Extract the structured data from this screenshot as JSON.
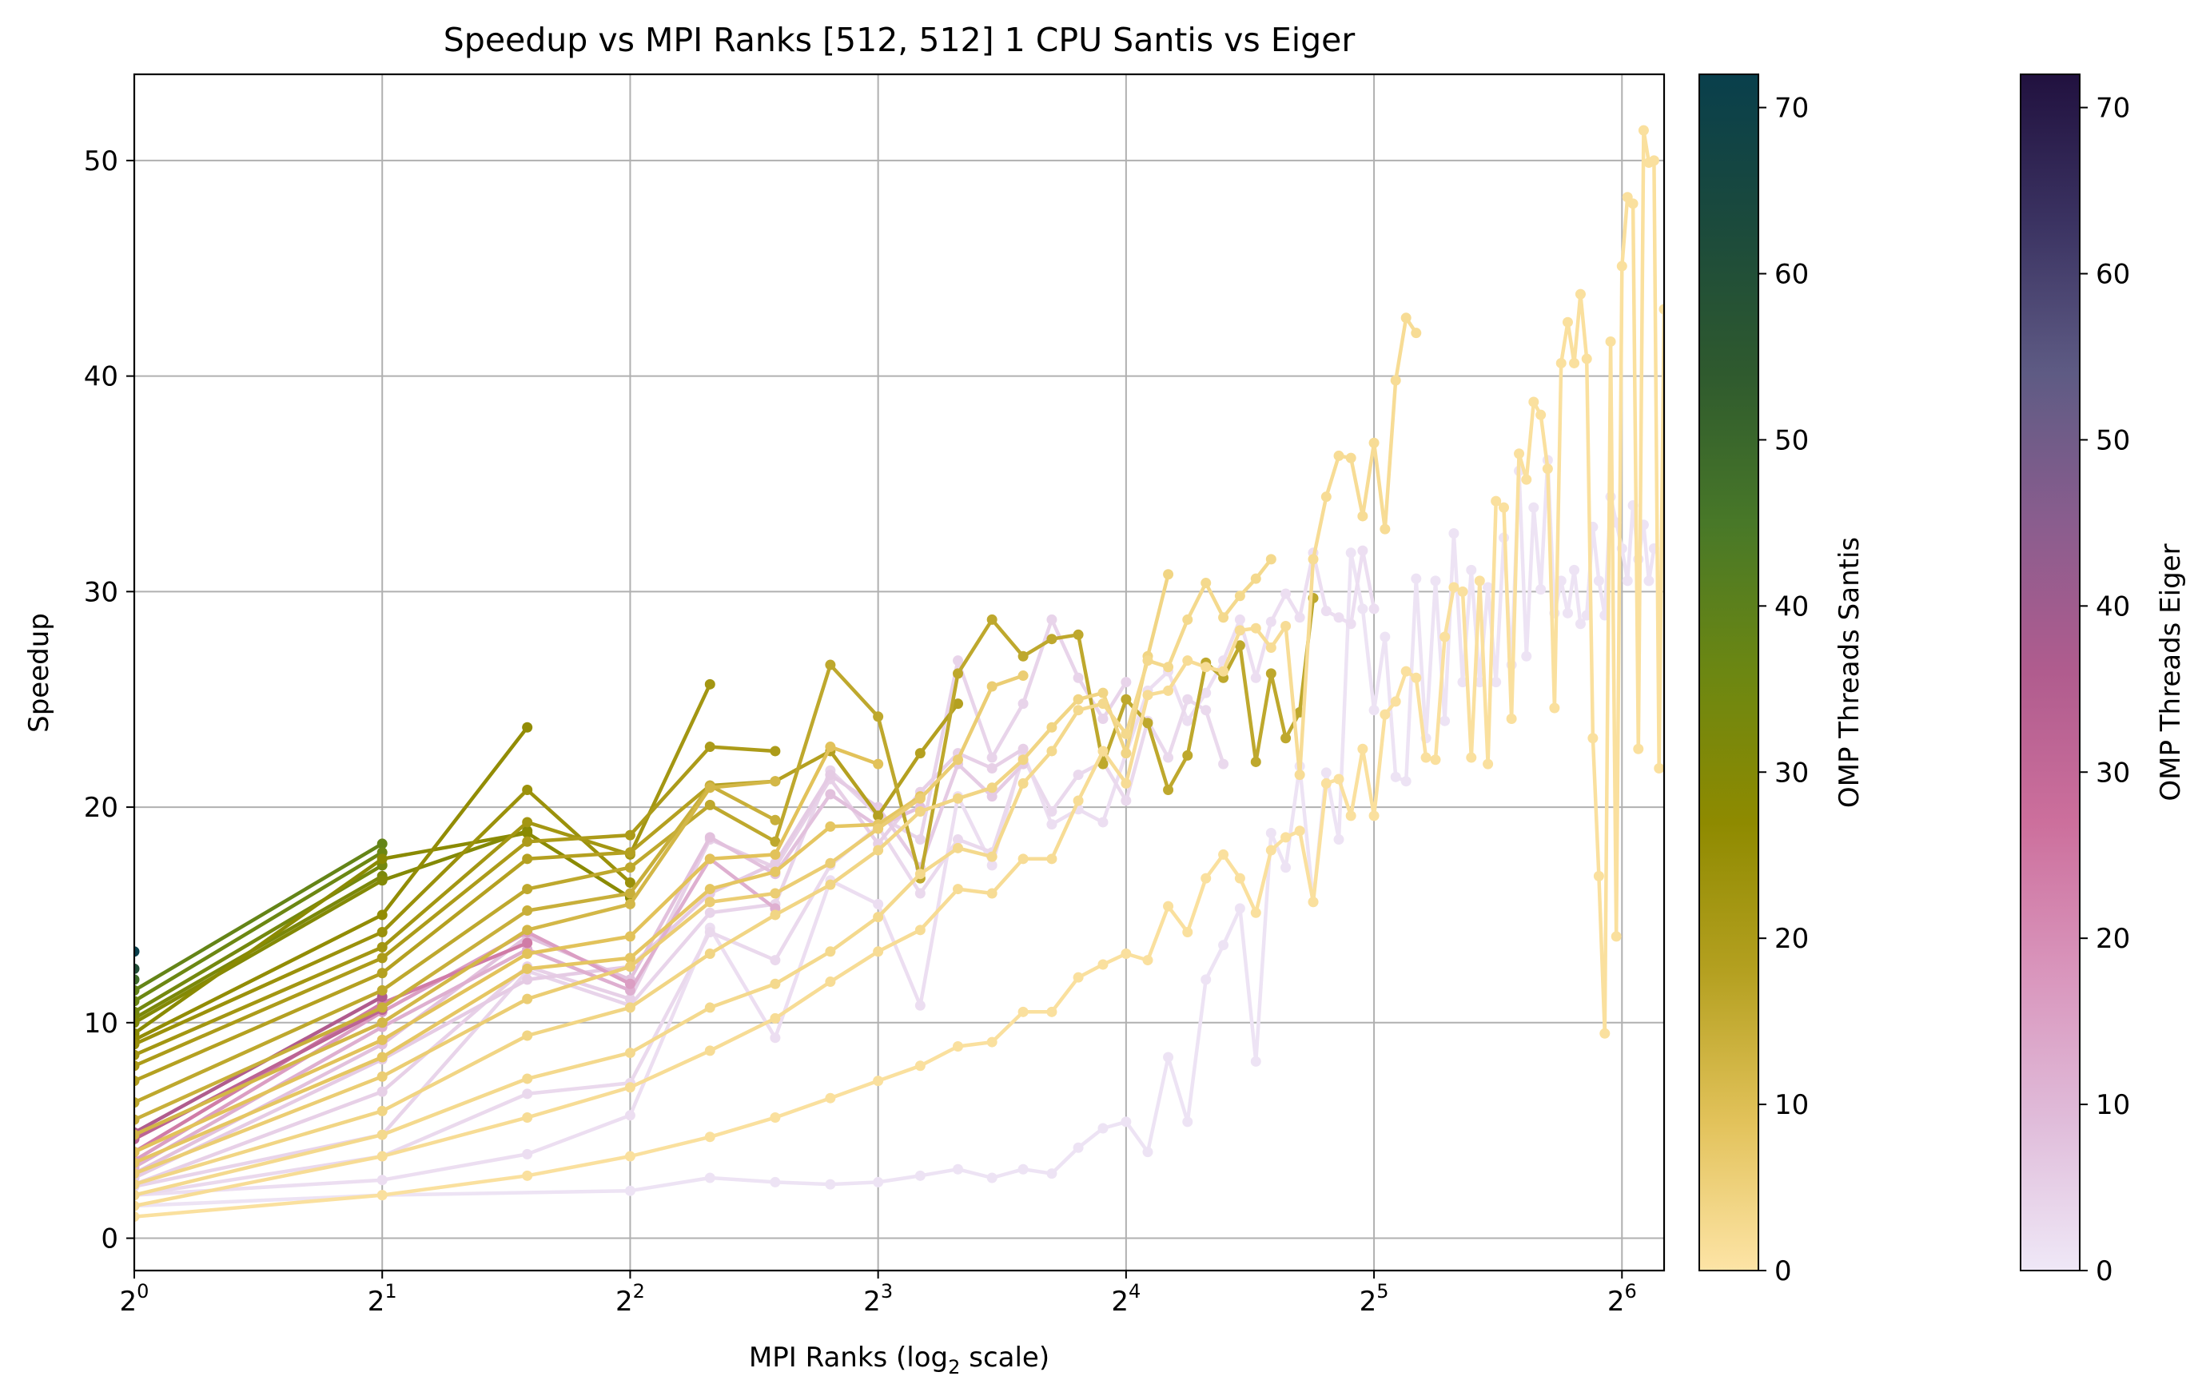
{
  "chart_data": {
    "type": "line",
    "title": "Speedup vs MPI Ranks [512, 512] 1 CPU Santis vs Eiger",
    "xlabel": "MPI Ranks (log₂ scale)",
    "xlabel_parts": {
      "prefix": "MPI Ranks (log",
      "sub": "2",
      "suffix": " scale)"
    },
    "ylabel": "Speedup",
    "x_scale": "log2",
    "xlim": [
      1,
      72
    ],
    "ylim": [
      -1.5,
      54
    ],
    "grid": true,
    "x_ticks": [
      {
        "value": 1,
        "base": "2",
        "exp": "0"
      },
      {
        "value": 2,
        "base": "2",
        "exp": "1"
      },
      {
        "value": 4,
        "base": "2",
        "exp": "2"
      },
      {
        "value": 8,
        "base": "2",
        "exp": "3"
      },
      {
        "value": 16,
        "base": "2",
        "exp": "4"
      },
      {
        "value": 32,
        "base": "2",
        "exp": "5"
      },
      {
        "value": 64,
        "base": "2",
        "exp": "6"
      }
    ],
    "y_ticks": [
      0,
      10,
      20,
      30,
      40,
      50
    ],
    "colorbars": [
      {
        "label": "OMP Threads Santis",
        "min": 0,
        "max": 72,
        "ticks": [
          0,
          10,
          20,
          30,
          40,
          50,
          60,
          70
        ],
        "stops": [
          "#fde4a6",
          "#e2c25a",
          "#b4a020",
          "#8e8a00",
          "#6c8712",
          "#487828",
          "#2f5a2e",
          "#1b4a3c",
          "#093f4c"
        ]
      },
      {
        "label": "OMP Threads Eiger",
        "min": 0,
        "max": 72,
        "ticks": [
          0,
          10,
          20,
          30,
          40,
          50,
          60,
          70
        ],
        "stops": [
          "#efe8f7",
          "#e0bcda",
          "#d995bc",
          "#cc6f9c",
          "#b05c8e",
          "#8a5d8e",
          "#5e5b84",
          "#3b3362",
          "#21113f"
        ]
      }
    ],
    "series": [
      {
        "system": "Eiger",
        "threads": 1,
        "x": [
          1,
          2,
          4,
          5,
          6,
          7,
          8,
          9,
          10,
          11,
          12,
          13,
          14,
          15,
          16,
          17,
          18,
          19,
          20,
          21,
          22,
          23,
          24,
          25,
          26,
          27,
          28,
          29,
          30,
          31,
          32,
          33,
          34,
          35,
          36,
          37,
          38,
          39,
          40,
          41,
          42,
          43,
          44,
          45,
          46,
          47,
          48,
          49,
          50,
          51,
          52,
          53,
          54,
          55,
          56,
          57,
          58,
          59,
          60,
          61,
          62,
          63,
          64,
          65,
          66,
          67,
          68,
          69,
          70
        ],
        "y": [
          1.5,
          2.0,
          2.2,
          2.8,
          2.6,
          2.5,
          2.6,
          2.9,
          3.2,
          2.8,
          3.2,
          3.0,
          4.2,
          5.1,
          5.4,
          4.0,
          8.4,
          5.4,
          12.0,
          13.6,
          15.3,
          8.2,
          18.8,
          17.2,
          21.9,
          15.6,
          21.6,
          18.5,
          31.8,
          29.2,
          24.5,
          27.9,
          21.4,
          21.2,
          30.6,
          23.2,
          30.5,
          24.0,
          32.7,
          25.8,
          31.0,
          25.8,
          30.2,
          25.8,
          32.5,
          26.6,
          35.6,
          27.0,
          33.9,
          30.1,
          36.1,
          29.0,
          30.5,
          29.0,
          31.0,
          28.5,
          28.9,
          33.0,
          30.5,
          28.9,
          34.4,
          33.2,
          32.0,
          30.5,
          34.0,
          31.5,
          33.1,
          30.5,
          32.0
        ]
      },
      {
        "system": "Eiger",
        "threads": 2,
        "x": [
          1,
          2,
          3,
          4,
          5,
          6,
          7,
          8,
          9,
          10,
          11,
          12,
          13,
          14,
          15,
          16,
          17,
          18,
          19,
          20,
          21,
          22,
          23,
          24,
          25,
          26,
          27,
          28,
          29,
          30,
          31,
          32
        ],
        "y": [
          2.0,
          2.7,
          3.9,
          5.7,
          14.4,
          9.3,
          16.6,
          15.5,
          10.8,
          20.5,
          17.3,
          22.5,
          19.2,
          19.9,
          19.3,
          22.5,
          25.4,
          26.3,
          24.0,
          25.3,
          26.8,
          28.7,
          26.0,
          28.6,
          29.9,
          28.8,
          31.8,
          29.1,
          28.8,
          28.5,
          31.9,
          29.2
        ]
      },
      {
        "system": "Eiger",
        "threads": 3,
        "x": [
          1,
          2,
          3,
          4,
          5,
          6,
          7,
          8,
          9,
          10,
          11,
          12,
          13,
          14,
          15,
          16,
          17,
          18,
          19,
          20,
          21
        ],
        "y": [
          2.0,
          3.8,
          6.7,
          7.2,
          14.2,
          12.9,
          17.3,
          19.1,
          16.0,
          18.5,
          17.9,
          22.3,
          19.8,
          21.5,
          22.1,
          20.3,
          24.0,
          22.3,
          25.0,
          24.5,
          22.0
        ]
      },
      {
        "system": "Eiger",
        "threads": 4,
        "x": [
          1,
          2,
          3,
          4,
          5,
          6,
          7,
          8,
          9,
          10,
          11,
          12,
          13,
          14,
          15,
          16
        ],
        "y": [
          2.4,
          4.8,
          12.4,
          10.8,
          15.1,
          15.5,
          21.7,
          19.6,
          18.5,
          26.8,
          22.3,
          24.8,
          28.7,
          26.0,
          24.1,
          25.8
        ]
      },
      {
        "system": "Eiger",
        "threads": 5,
        "x": [
          1,
          2,
          3,
          4,
          5,
          6,
          7,
          8,
          9,
          10,
          11,
          12
        ],
        "y": [
          2.5,
          6.8,
          12.6,
          11.1,
          18.5,
          17.2,
          21.3,
          18.3,
          20.7,
          22.5,
          21.8,
          22.7
        ]
      },
      {
        "system": "Eiger",
        "threads": 6,
        "x": [
          1,
          2,
          3,
          4,
          5,
          6,
          7,
          8,
          9,
          10,
          11,
          12
        ],
        "y": [
          2.8,
          8.3,
          12.0,
          12.6,
          16.0,
          17.4,
          21.5,
          20.0,
          17.2,
          22.0,
          20.5,
          22.0
        ]
      },
      {
        "system": "Eiger",
        "threads": 8,
        "x": [
          1,
          2,
          3,
          4,
          5,
          6,
          7,
          8,
          9
        ],
        "y": [
          3.0,
          9.0,
          14.0,
          12.0,
          18.6,
          16.9,
          20.6,
          19.1,
          20.0
        ]
      },
      {
        "system": "Eiger",
        "threads": 12,
        "x": [
          1,
          2,
          3,
          4,
          5,
          6
        ],
        "y": [
          3.3,
          9.8,
          13.4,
          11.5,
          17.6,
          15.3
        ]
      },
      {
        "system": "Eiger",
        "threads": 16,
        "x": [
          1,
          2,
          3,
          4
        ],
        "y": [
          3.6,
          10.5,
          14.2,
          11.8
        ]
      },
      {
        "system": "Eiger",
        "threads": 24,
        "x": [
          1,
          2,
          3
        ],
        "y": [
          4.0,
          10.9,
          13.7
        ]
      },
      {
        "system": "Eiger",
        "threads": 32,
        "x": [
          1,
          2
        ],
        "y": [
          4.6,
          10.6
        ]
      },
      {
        "system": "Eiger",
        "threads": 36,
        "x": [
          1,
          2
        ],
        "y": [
          4.9,
          11.2
        ]
      },
      {
        "system": "Santis",
        "threads": 1,
        "x": [
          1,
          2,
          3,
          4,
          5,
          6,
          7,
          8,
          9,
          10,
          11,
          12,
          13,
          14,
          15,
          16,
          17,
          18,
          19,
          20,
          21,
          22,
          23,
          24,
          25,
          26,
          27,
          28,
          29,
          30,
          31,
          32,
          33,
          34,
          35,
          36,
          37,
          38,
          39,
          40,
          41,
          42,
          43,
          44,
          45,
          46,
          47,
          48,
          49,
          50,
          51,
          52,
          53,
          54,
          55,
          56,
          57,
          58,
          59,
          60,
          61,
          62,
          63,
          64,
          65,
          66,
          67,
          68,
          69,
          70,
          71,
          72
        ],
        "y": [
          1.0,
          2.0,
          2.9,
          3.8,
          4.7,
          5.6,
          6.5,
          7.3,
          8.0,
          8.9,
          9.1,
          10.5,
          10.5,
          12.1,
          12.7,
          13.2,
          12.9,
          15.4,
          14.2,
          16.7,
          17.8,
          16.7,
          15.1,
          18.0,
          18.6,
          18.9,
          15.6,
          21.1,
          21.3,
          19.6,
          22.7,
          19.6,
          24.3,
          24.9,
          26.3,
          26.0,
          22.3,
          22.2,
          27.9,
          30.2,
          30.0,
          22.3,
          30.5,
          22.0,
          34.2,
          33.9,
          24.1,
          36.4,
          35.2,
          38.8,
          38.2,
          35.7,
          24.6,
          40.6,
          42.5,
          40.6,
          43.8,
          40.8,
          23.2,
          16.8,
          9.5,
          41.6,
          14.0,
          45.1,
          48.3,
          48.0,
          22.7,
          51.4,
          49.9,
          50.0,
          21.8,
          43.1
        ]
      },
      {
        "system": "Santis",
        "threads": 2,
        "x": [
          1,
          2,
          3,
          4,
          5,
          6,
          7,
          8,
          9,
          10,
          11,
          12,
          13,
          14,
          15,
          16,
          17,
          18,
          19,
          20,
          21,
          22,
          23,
          24,
          25,
          26,
          27,
          28,
          29,
          30,
          31,
          32,
          33,
          34,
          35,
          36
        ],
        "y": [
          1.5,
          3.8,
          5.6,
          7.0,
          8.7,
          10.2,
          11.9,
          13.3,
          14.3,
          16.2,
          16.0,
          17.6,
          17.6,
          20.3,
          22.6,
          21.1,
          25.2,
          25.4,
          26.8,
          26.5,
          26.3,
          28.2,
          28.3,
          27.4,
          28.4,
          21.5,
          31.5,
          34.4,
          36.3,
          36.2,
          33.5,
          36.9,
          32.9,
          39.8,
          42.7,
          42.0
        ]
      },
      {
        "system": "Santis",
        "threads": 3,
        "x": [
          1,
          2,
          3,
          4,
          5,
          6,
          7,
          8,
          9,
          10,
          11,
          12,
          13,
          14,
          15,
          16,
          17,
          18,
          19,
          20,
          21,
          22,
          23,
          24
        ],
        "y": [
          2.0,
          4.8,
          7.4,
          8.6,
          10.7,
          11.8,
          13.3,
          14.9,
          16.9,
          18.1,
          17.7,
          21.1,
          22.6,
          24.5,
          24.8,
          23.4,
          26.8,
          26.5,
          28.7,
          30.4,
          28.8,
          29.8,
          30.6,
          31.5
        ]
      },
      {
        "system": "Santis",
        "threads": 4,
        "x": [
          1,
          2,
          3,
          4,
          5,
          6,
          7,
          8,
          9,
          10,
          11,
          12,
          13,
          14,
          15,
          16,
          17,
          18
        ],
        "y": [
          2.5,
          5.9,
          9.4,
          10.7,
          13.2,
          15.0,
          16.4,
          18.0,
          19.8,
          20.4,
          20.9,
          22.2,
          23.7,
          25.0,
          25.3,
          22.5,
          27.0,
          30.8
        ]
      },
      {
        "system": "Santis",
        "threads": 6,
        "x": [
          1,
          2,
          3,
          4,
          5,
          6,
          7,
          8,
          9,
          10,
          11,
          12
        ],
        "y": [
          3.0,
          7.5,
          11.1,
          12.6,
          15.6,
          16.0,
          17.4,
          19.0,
          20.4,
          22.2,
          25.6,
          26.1
        ]
      },
      {
        "system": "Santis",
        "threads": 8,
        "x": [
          1,
          2,
          3,
          4,
          5,
          6,
          7,
          8,
          9
        ],
        "y": [
          3.5,
          8.4,
          12.5,
          13.0,
          16.2,
          17.0,
          19.1,
          19.2,
          20.5
        ]
      },
      {
        "system": "Santis",
        "threads": 9,
        "x": [
          1,
          2,
          3,
          4,
          5,
          6,
          7,
          8
        ],
        "y": [
          4.0,
          9.2,
          13.2,
          14.0,
          17.6,
          17.8,
          22.8,
          22.0
        ]
      },
      {
        "system": "Santis",
        "threads": 12,
        "x": [
          1,
          2,
          3,
          4,
          5,
          6
        ],
        "y": [
          4.8,
          10.0,
          14.3,
          15.5,
          20.9,
          21.2
        ]
      },
      {
        "system": "Santis",
        "threads": 14,
        "x": [
          1,
          2,
          3,
          4,
          5,
          6
        ],
        "y": [
          5.5,
          10.7,
          15.2,
          16.0,
          21.0,
          19.4
        ]
      },
      {
        "system": "Santis",
        "threads": 16,
        "x": [
          1,
          2,
          3,
          4,
          5,
          6,
          7,
          8,
          9,
          10,
          11,
          12,
          13,
          14,
          15,
          16,
          17,
          18,
          19,
          20,
          21,
          22,
          23,
          24,
          25,
          26,
          27
        ],
        "y": [
          6.3,
          11.5,
          16.2,
          17.2,
          20.1,
          18.4,
          26.6,
          24.2,
          16.7,
          26.2,
          28.7,
          27.0,
          27.8,
          28.0,
          22.0,
          25.0,
          23.9,
          20.8,
          22.4,
          26.7,
          26.0,
          27.5,
          22.1,
          26.2,
          23.2,
          24.4,
          29.7
        ]
      },
      {
        "system": "Santis",
        "threads": 18,
        "x": [
          1,
          2,
          3,
          4,
          5,
          6,
          7,
          8,
          9,
          10
        ],
        "y": [
          7.3,
          12.3,
          17.6,
          17.9,
          21.0,
          21.2,
          22.6,
          19.6,
          22.5,
          24.8
        ]
      },
      {
        "system": "Santis",
        "threads": 20,
        "x": [
          1,
          2,
          3,
          4,
          5,
          6
        ],
        "y": [
          8.0,
          13.0,
          18.4,
          18.7,
          22.8,
          22.6
        ]
      },
      {
        "system": "Santis",
        "threads": 22,
        "x": [
          1,
          2,
          3,
          4,
          5
        ],
        "y": [
          8.5,
          13.5,
          19.3,
          17.8,
          25.7
        ]
      },
      {
        "system": "Santis",
        "threads": 24,
        "x": [
          1,
          2,
          3,
          4
        ],
        "y": [
          9.0,
          14.2,
          20.8,
          16.5
        ]
      },
      {
        "system": "Santis",
        "threads": 26,
        "x": [
          1,
          2,
          3
        ],
        "y": [
          9.2,
          15.0,
          23.7
        ]
      },
      {
        "system": "Santis",
        "threads": 28,
        "x": [
          1,
          2,
          3,
          4
        ],
        "y": [
          9.5,
          17.6,
          18.8,
          15.8
        ]
      },
      {
        "system": "Santis",
        "threads": 30,
        "x": [
          1,
          2,
          3
        ],
        "y": [
          10.0,
          16.6,
          18.9
        ]
      },
      {
        "system": "Santis",
        "threads": 32,
        "x": [
          1,
          2
        ],
        "y": [
          10.2,
          16.8
        ]
      },
      {
        "system": "Santis",
        "threads": 34,
        "x": [
          1,
          2
        ],
        "y": [
          10.5,
          17.3
        ]
      },
      {
        "system": "Santis",
        "threads": 36,
        "x": [
          1,
          2
        ],
        "y": [
          11.0,
          17.9
        ]
      },
      {
        "system": "Santis",
        "threads": 38,
        "x": [
          1,
          2
        ],
        "y": [
          11.5,
          18.3
        ]
      },
      {
        "system": "Santis",
        "threads": 48,
        "x": [
          1
        ],
        "y": [
          12.0
        ]
      },
      {
        "system": "Santis",
        "threads": 60,
        "x": [
          1
        ],
        "y": [
          12.5
        ]
      },
      {
        "system": "Santis",
        "threads": 72,
        "x": [
          1
        ],
        "y": [
          13.3
        ]
      }
    ]
  }
}
